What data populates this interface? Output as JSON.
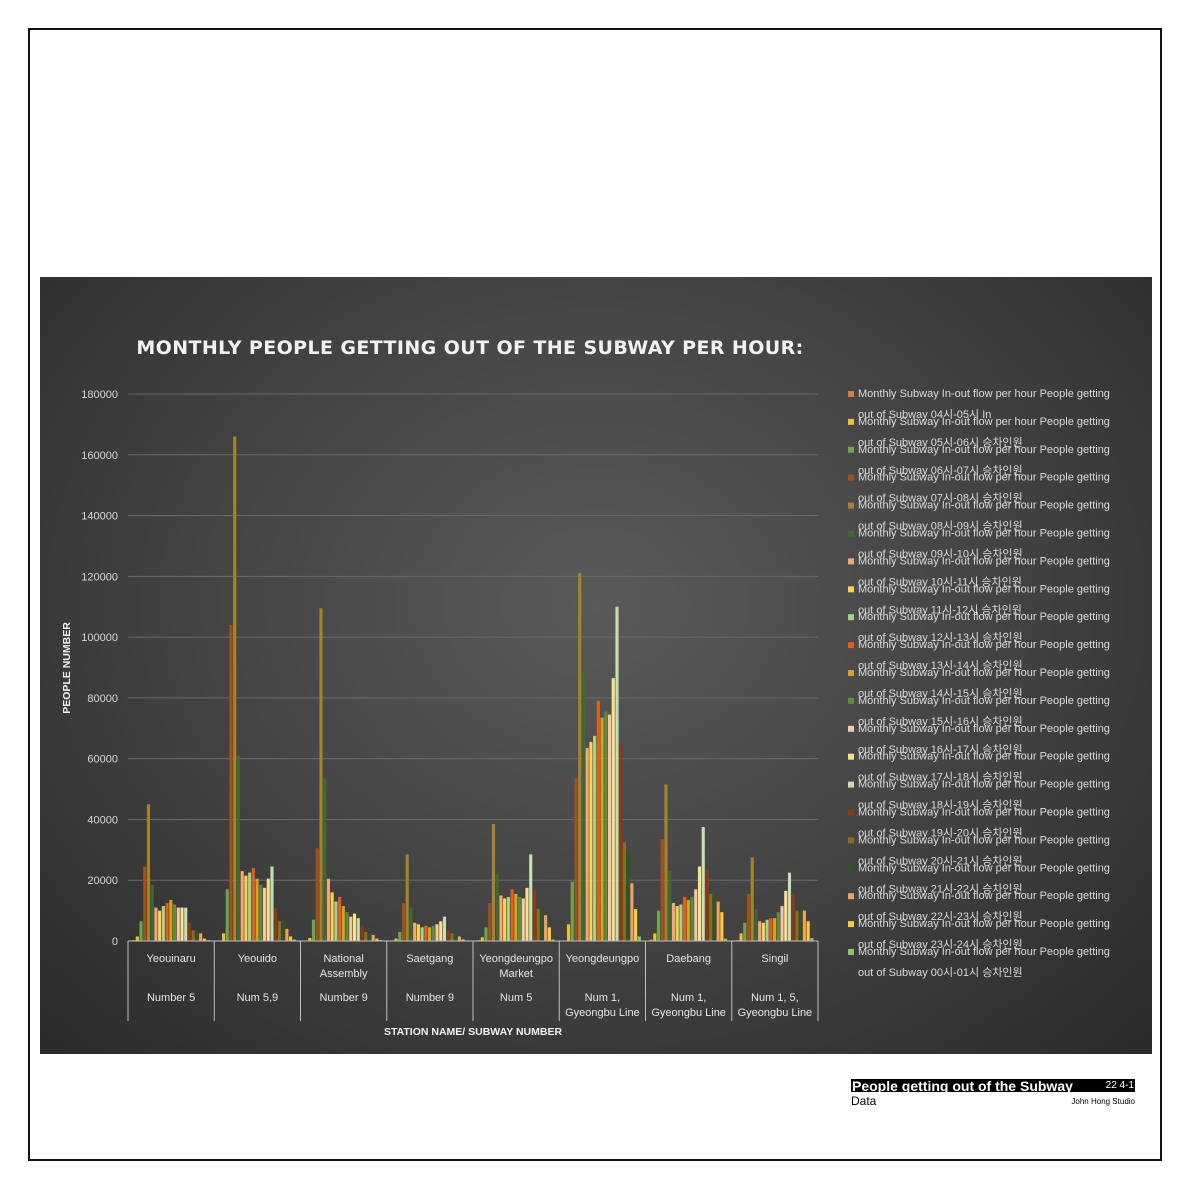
{
  "chart_data": {
    "type": "bar",
    "title": "MONTHLY PEOPLE GETTING OUT OF THE SUBWAY PER HOUR:",
    "ylabel": "PEOPLE NUMBER",
    "xlabel": "STATION NAME/ SUBWAY NUMBER",
    "ylim": [
      0,
      180000
    ],
    "yticks": [
      0,
      20000,
      40000,
      60000,
      80000,
      100000,
      120000,
      140000,
      160000,
      180000
    ],
    "grid": true,
    "legend_position": "right",
    "categories": [
      {
        "station": "Yeouinaru",
        "line": "Number 5"
      },
      {
        "station": "Yeouido",
        "line": "Num 5,9"
      },
      {
        "station": "National Assembly",
        "line": "Number 9"
      },
      {
        "station": "Saetgang",
        "line": "Number 9"
      },
      {
        "station": "Yeongdeungpo Market",
        "line": "Num 5"
      },
      {
        "station": "Yeongdeungpo",
        "line": "Num 1, Gyeongbu Line"
      },
      {
        "station": "Daebang",
        "line": "Num 1, Gyeongbu Line"
      },
      {
        "station": "Singil",
        "line": "Num 1, 5, Gyeongbu Line"
      }
    ],
    "series": [
      {
        "name": "Monthly Subway In-out flow per hour People getting out of Subway 04시-05시 In",
        "color": "#e07b39",
        "values": [
          300,
          200,
          100,
          200,
          300,
          200,
          500,
          300
        ]
      },
      {
        "name": "Monthly Subway In-out flow per hour People getting out of Subway 05시-06시 승차인원",
        "color": "#f2c12e",
        "values": [
          1500,
          2500,
          1000,
          800,
          1200,
          5500,
          2500,
          2500
        ]
      },
      {
        "name": "Monthly Subway In-out flow per hour People getting out of Subway 06시-07시 승차인원",
        "color": "#6aa84f",
        "values": [
          6500,
          17000,
          7000,
          3000,
          4500,
          19500,
          10000,
          6000
        ]
      },
      {
        "name": "Monthly Subway In-out flow per hour People getting out of Subway 07시-08시 승차인원",
        "color": "#a0521d",
        "values": [
          24500,
          104000,
          30500,
          12500,
          12500,
          53500,
          33500,
          15500
        ]
      },
      {
        "name": "Monthly Subway In-out flow per hour People getting out of Subway 08시-09시 승차인원",
        "color": "#a8822b",
        "values": [
          45000,
          166000,
          109500,
          28500,
          38500,
          121000,
          51500,
          27500
        ]
      },
      {
        "name": "Monthly Subway In-out flow per hour People getting out of Subway 09시-10시 승차인원",
        "color": "#3f6b32",
        "values": [
          18500,
          61000,
          53500,
          11000,
          22000,
          88500,
          23000,
          10500
        ]
      },
      {
        "name": "Monthly Subway In-out flow per hour People getting out of Subway 10시-11시 승차인원",
        "color": "#f4a87a",
        "values": [
          11000,
          23000,
          20500,
          6000,
          15000,
          63500,
          12500,
          6500
        ]
      },
      {
        "name": "Monthly Subway In-out flow per hour People getting out of Subway 11시-12시 승차인원",
        "color": "#ffd24a",
        "values": [
          10000,
          21500,
          16000,
          5500,
          14000,
          65500,
          11500,
          6000
        ]
      },
      {
        "name": "Monthly Subway In-out flow per hour People getting out of Subway 12시-13시 승차인원",
        "color": "#a9d18e",
        "values": [
          11500,
          22500,
          13000,
          4500,
          14500,
          67500,
          12000,
          7000
        ]
      },
      {
        "name": "Monthly Subway In-out flow per hour People getting out of Subway 13시-14시 승차인원",
        "color": "#e25f1d",
        "values": [
          12500,
          24000,
          14500,
          5000,
          17000,
          79000,
          14500,
          7500
        ]
      },
      {
        "name": "Monthly Subway In-out flow per hour People getting out of Subway 14시-15시 승차인원",
        "color": "#d9a21b",
        "values": [
          13500,
          20500,
          11500,
          4500,
          15500,
          73500,
          13500,
          7500
        ]
      },
      {
        "name": "Monthly Subway In-out flow per hour People getting out of Subway 15시-16시 승차인원",
        "color": "#5e8c3a",
        "values": [
          12000,
          18500,
          9500,
          5000,
          14500,
          75500,
          14500,
          9500
        ]
      },
      {
        "name": "Monthly Subway In-out flow per hour People getting out of Subway 16시-17시 승차인원",
        "color": "#f7c8a4",
        "values": [
          11000,
          17500,
          8000,
          5500,
          14000,
          74500,
          17000,
          11500
        ]
      },
      {
        "name": "Monthly Subway In-out flow per hour People getting out of Subway 17시-18시 승차인원",
        "color": "#ffe08a",
        "values": [
          11000,
          20500,
          9000,
          6500,
          17500,
          86500,
          24500,
          16500
        ]
      },
      {
        "name": "Monthly Subway In-out flow per hour People getting out of Subway 18시-19시 승차인원",
        "color": "#c5e0b4",
        "values": [
          11000,
          24500,
          7500,
          8000,
          28500,
          110000,
          37500,
          22500
        ]
      },
      {
        "name": "Monthly Subway In-out flow per hour People getting out of Subway 19시-20시 승차인원",
        "color": "#8b3a12",
        "values": [
          6000,
          11000,
          5000,
          3500,
          16500,
          64500,
          23500,
          15500
        ]
      },
      {
        "name": "Monthly Subway In-out flow per hour People getting out of Subway 20시-21시 승차인원",
        "color": "#8b6d20",
        "values": [
          3500,
          6500,
          3000,
          2500,
          10500,
          32500,
          15500,
          10000
        ]
      },
      {
        "name": "Monthly Subway In-out flow per hour People getting out of Subway 21시-22시 승차인원",
        "color": "#2e5524",
        "values": [
          3500,
          6500,
          2500,
          2000,
          12000,
          28500,
          15500,
          11000
        ]
      },
      {
        "name": "Monthly Subway In-out flow per hour People getting out of Subway 22시-23시 승차인원",
        "color": "#f0a060",
        "values": [
          2500,
          4000,
          2000,
          1500,
          8500,
          19000,
          13000,
          10000
        ]
      },
      {
        "name": "Monthly Subway In-out flow per hour People getting out of Subway 23시-24시 승차인원",
        "color": "#ffcc33",
        "values": [
          800,
          1500,
          800,
          500,
          4500,
          10500,
          9500,
          6500
        ]
      },
      {
        "name": "Monthly Subway In-out flow per hour People getting out of Subway 00시-01시 승차인원",
        "color": "#8fc460",
        "values": [
          300,
          500,
          300,
          200,
          500,
          1500,
          800,
          1000
        ]
      }
    ]
  },
  "footer": {
    "title": "People getting out of the Subway",
    "date": "22 4-1",
    "subtitle": "Data",
    "studio": "John Hong Studio"
  }
}
